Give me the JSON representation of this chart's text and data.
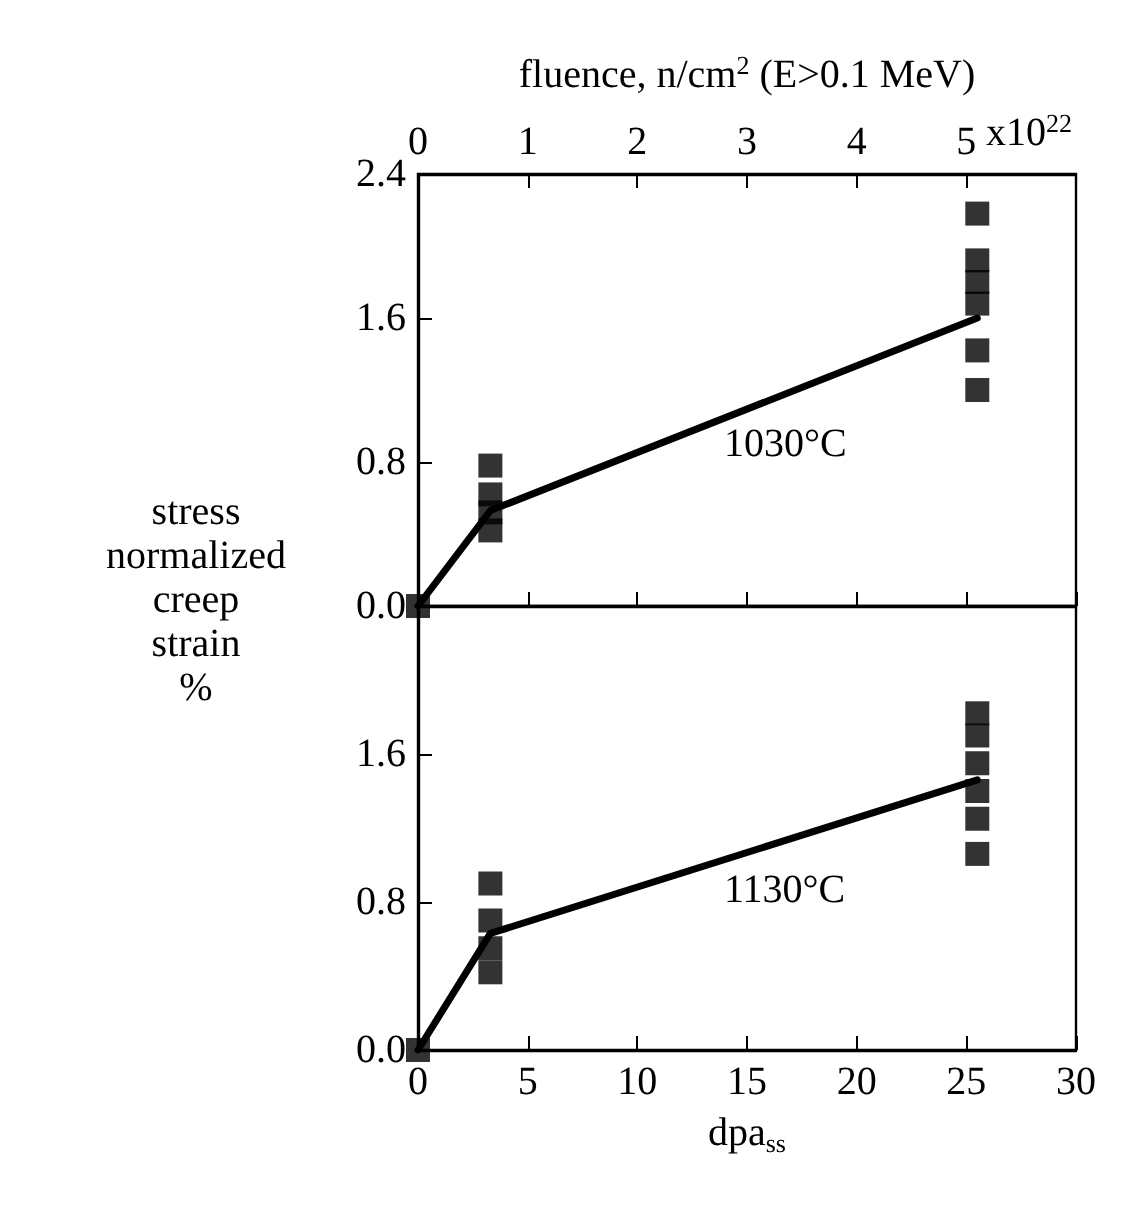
{
  "chart_data": [
    {
      "type": "scatter",
      "x2label": "fluence, n/cm$^{2}$ (E>0.1 MeV)",
      "ylabel": "stress normalized creep strain %",
      "annotations": [
        "1030°C",
        "x10$^{22}$"
      ],
      "tick_labels": "y",
      "xlim": [
        0,
        30
      ],
      "xticks": [
        {
          "value": 0,
          "label": null
        },
        {
          "value": 5,
          "label": null
        },
        {
          "value": 10,
          "label": null
        },
        {
          "value": 15,
          "label": null
        },
        {
          "value": 20,
          "label": null
        },
        {
          "value": 25,
          "label": null
        },
        {
          "value": 30,
          "label": null
        }
      ],
      "x2lim": [
        0,
        6
      ],
      "x2ticks": [
        0,
        1,
        2,
        3,
        4,
        5
      ],
      "ylim": [
        0,
        2.4
      ],
      "yticks": [
        {
          "value": 0,
          "label": "0.0"
        },
        0.8,
        1.6,
        2.4
      ],
      "series": [
        {
          "marker": "square",
          "color": "#000000",
          "x": [
            0,
            3.3,
            3.3,
            3.3,
            3.3,
            25.5,
            25.5,
            25.5,
            25.5,
            25.5,
            25.5
          ],
          "values": [
            0,
            0.78,
            0.62,
            0.52,
            0.42,
            2.18,
            1.92,
            1.8,
            1.68,
            1.42,
            1.2
          ]
        },
        {
          "type": "line",
          "marker": "none",
          "color": "#000000",
          "x": [
            0,
            3.3,
            25.5
          ],
          "values": [
            0,
            0.53,
            1.6
          ]
        }
      ]
    },
    {
      "type": "scatter",
      "xlabel": "dpa$_{ss}$",
      "annotations": [
        "1130°C"
      ],
      "xlim": [
        0,
        30
      ],
      "xticks": [
        0,
        5,
        10,
        15,
        20,
        25,
        30
      ],
      "ylim": [
        0,
        2.4
      ],
      "yticks": [
        {
          "value": 0,
          "label": "0.0"
        },
        0.8,
        1.6
      ],
      "series": [
        {
          "marker": "square",
          "color": "#000000",
          "x": [
            0,
            3.3,
            3.3,
            3.3,
            3.3,
            25.5,
            25.5,
            25.5,
            25.5,
            25.5,
            25.5
          ],
          "values": [
            0,
            0.9,
            0.7,
            0.55,
            0.42,
            1.82,
            1.7,
            1.55,
            1.4,
            1.25,
            1.06
          ]
        },
        {
          "type": "line",
          "marker": "none",
          "color": "#000000",
          "x": [
            0,
            3.3,
            25.5
          ],
          "values": [
            0,
            0.63,
            1.46
          ]
        }
      ]
    }
  ]
}
